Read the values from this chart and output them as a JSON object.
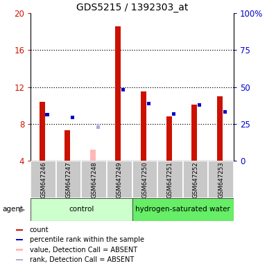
{
  "title": "GDS5215 / 1392303_at",
  "samples": [
    "GSM647246",
    "GSM647247",
    "GSM647248",
    "GSM647249",
    "GSM647250",
    "GSM647251",
    "GSM647252",
    "GSM647253"
  ],
  "red_values": [
    10.4,
    7.35,
    5.2,
    18.6,
    11.55,
    8.8,
    10.1,
    11.0
  ],
  "blue_values": [
    9.05,
    8.75,
    7.65,
    11.7,
    10.25,
    9.1,
    10.05,
    9.35
  ],
  "absent_mask": [
    false,
    false,
    true,
    false,
    false,
    false,
    false,
    false
  ],
  "red_color": "#CC1100",
  "blue_color": "#0000CC",
  "pink_color": "#FFB8B8",
  "light_blue_color": "#AAAADD",
  "ylim_left": [
    4,
    20
  ],
  "yticks_left": [
    4,
    8,
    12,
    16,
    20
  ],
  "ytick_labels_left": [
    "4",
    "8",
    "12",
    "16",
    "20"
  ],
  "ytick_labels_right": [
    "0",
    "25",
    "50",
    "75",
    "100%"
  ],
  "group1_label": "control",
  "group2_label": "hydrogen-saturated water",
  "group_bg1": "#CCFFCC",
  "group_bg2": "#66EE66",
  "agent_label": "agent",
  "legend_items": [
    {
      "color": "#CC1100",
      "label": "count"
    },
    {
      "color": "#0000CC",
      "label": "percentile rank within the sample"
    },
    {
      "color": "#FFB8B8",
      "label": "value, Detection Call = ABSENT"
    },
    {
      "color": "#AAAADD",
      "label": "rank, Detection Call = ABSENT"
    }
  ]
}
